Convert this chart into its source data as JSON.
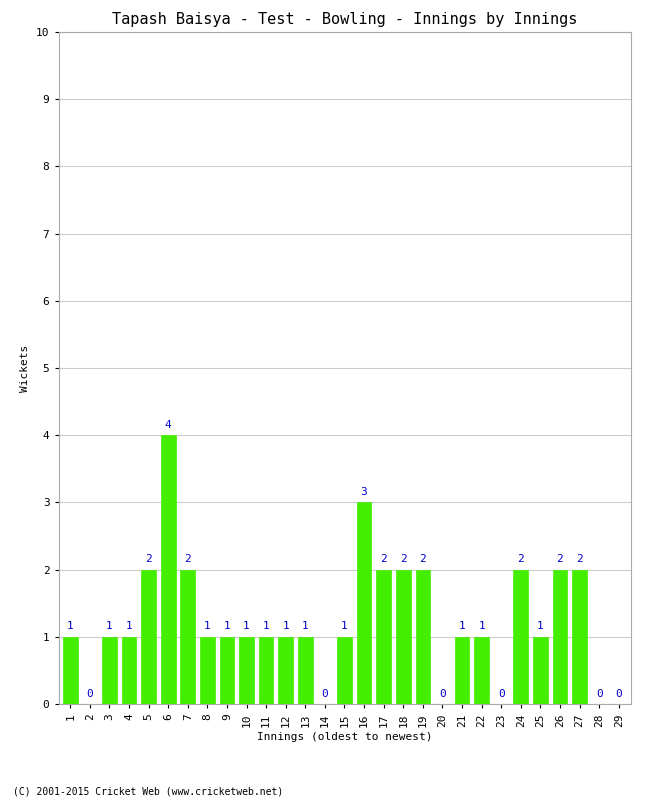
{
  "title": "Tapash Baisya - Test - Bowling - Innings by Innings",
  "xlabel": "Innings (oldest to newest)",
  "ylabel": "Wickets",
  "innings": [
    1,
    2,
    3,
    4,
    5,
    6,
    7,
    8,
    9,
    10,
    11,
    12,
    13,
    14,
    15,
    16,
    17,
    18,
    19,
    20,
    21,
    22,
    23,
    24,
    25,
    26,
    27,
    28,
    29
  ],
  "wickets": [
    1,
    0,
    1,
    1,
    2,
    4,
    2,
    1,
    1,
    1,
    1,
    1,
    1,
    0,
    1,
    3,
    2,
    2,
    2,
    0,
    1,
    1,
    0,
    2,
    1,
    2,
    2,
    0,
    0
  ],
  "bar_color": "#44ee00",
  "label_color": "#0000cc",
  "ylim": [
    0,
    10
  ],
  "yticks": [
    0,
    1,
    2,
    3,
    4,
    5,
    6,
    7,
    8,
    9,
    10
  ],
  "background_color": "#ffffff",
  "grid_color": "#cccccc",
  "footer": "(C) 2001-2015 Cricket Web (www.cricketweb.net)",
  "title_fontsize": 11,
  "axis_label_fontsize": 8,
  "tick_fontsize": 8,
  "bar_label_fontsize": 8,
  "footer_fontsize": 7
}
